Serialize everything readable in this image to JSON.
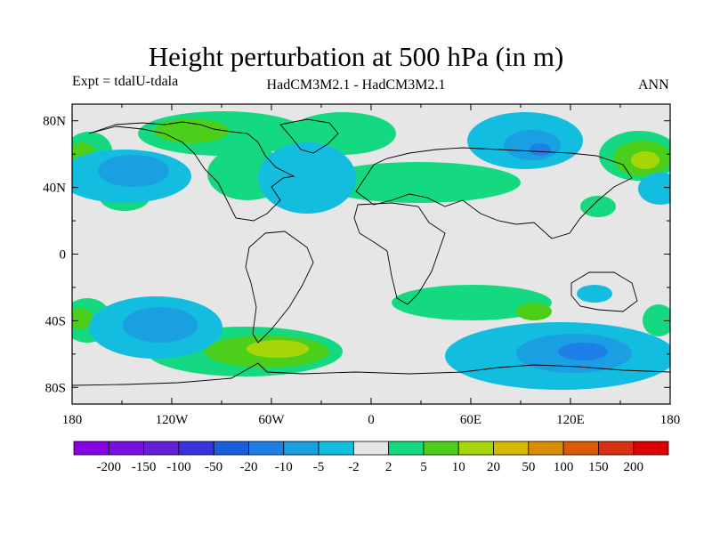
{
  "title": "Height perturbation at 500 hPa (in m)",
  "left_string": "Expt = tdalU-tdala",
  "center_string": "HadCM3M2.1 - HadCM3M2.1",
  "right_string": "ANN",
  "map": {
    "projection": "cylindrical-equidistant",
    "lon_range": [
      -180,
      180
    ],
    "lat_range": [
      -90,
      90
    ],
    "lon_ticks": [
      {
        "value": -180,
        "label": "180"
      },
      {
        "value": -120,
        "label": "120W"
      },
      {
        "value": -60,
        "label": "60W"
      },
      {
        "value": 0,
        "label": "0"
      },
      {
        "value": 60,
        "label": "60E"
      },
      {
        "value": 120,
        "label": "120E"
      },
      {
        "value": 180,
        "label": "180"
      }
    ],
    "lat_ticks": [
      {
        "value": 80,
        "label": "80N"
      },
      {
        "value": 40,
        "label": "40N"
      },
      {
        "value": 0,
        "label": "0"
      },
      {
        "value": -40,
        "label": "40S"
      },
      {
        "value": -80,
        "label": "80S"
      }
    ],
    "background_color": "#e6e6e6"
  },
  "colorbar": {
    "labels": [
      "-200",
      "-150",
      "-100",
      "-50",
      "-20",
      "-10",
      "-5",
      "-2",
      "2",
      "5",
      "10",
      "20",
      "50",
      "100",
      "150",
      "200"
    ],
    "colors": [
      "#8a00e6",
      "#7a10dd",
      "#6420d6",
      "#3a33dd",
      "#1a5ee0",
      "#1e7fe6",
      "#1a9fe3",
      "#12bde0",
      "#e6e6e6",
      "#14d980",
      "#4ccf1a",
      "#a6d608",
      "#d6b800",
      "#dc8c00",
      "#dc5a00",
      "#d83010",
      "#dc0000"
    ]
  }
}
